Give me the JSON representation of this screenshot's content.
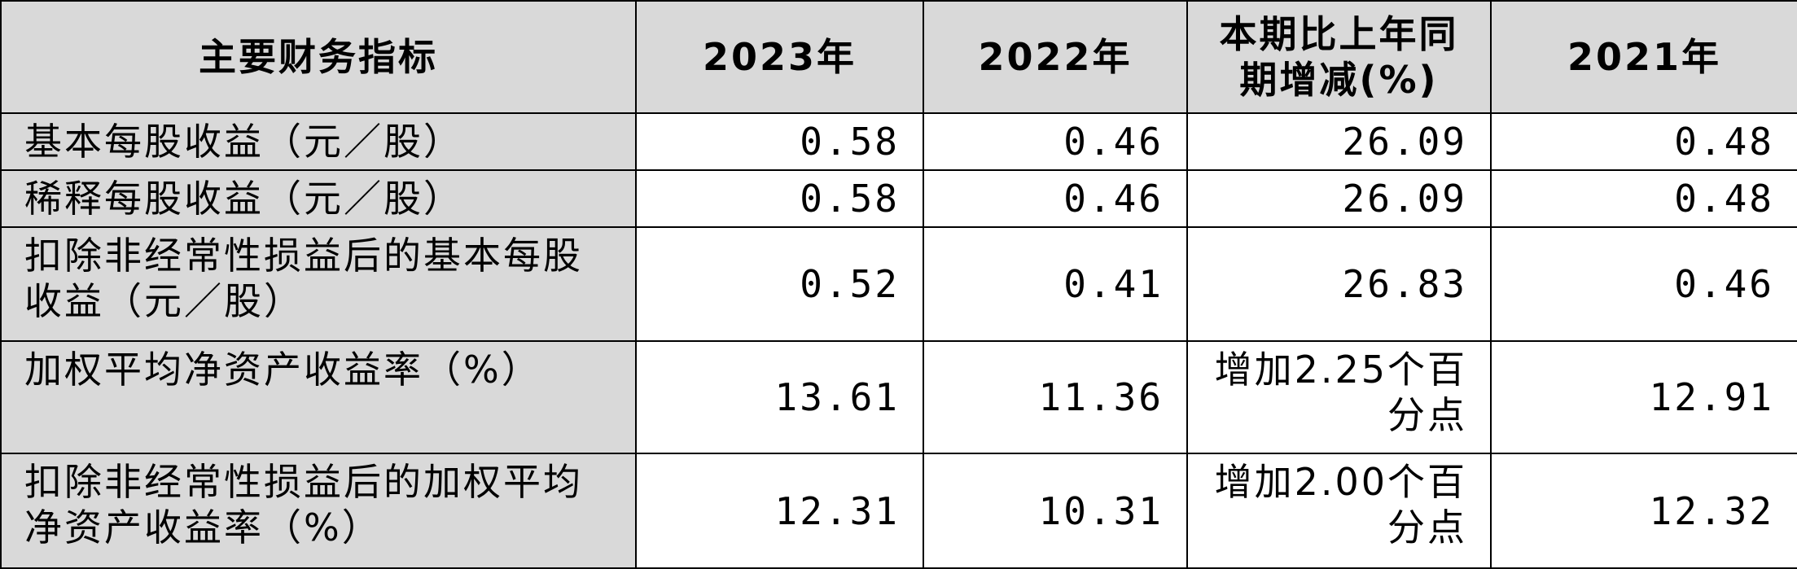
{
  "table": {
    "header": [
      "主要财务指标",
      "2023年",
      "2022年",
      "本期比上年同期增减(%)",
      "2021年"
    ],
    "rows": [
      [
        "基本每股收益（元／股）",
        "0.58",
        "0.46",
        "26.09",
        "0.48"
      ],
      [
        "稀释每股收益（元／股）",
        "0.58",
        "0.46",
        "26.09",
        "0.48"
      ],
      [
        "扣除非经常性损益后的基本每股收益（元／股）",
        "0.52",
        "0.41",
        "26.83",
        "0.46"
      ],
      [
        "加权平均净资产收益率（%）",
        "13.61",
        "11.36",
        "增加2.25个百分点",
        "12.91"
      ],
      [
        "扣除非经常性损益后的加权平均净资产收益率（%）",
        "12.31",
        "10.31",
        "增加2.00个百分点",
        "12.32"
      ]
    ]
  }
}
